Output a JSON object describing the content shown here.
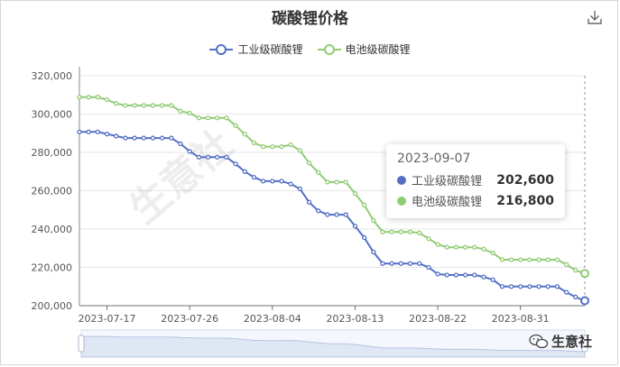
{
  "chart_data": {
    "type": "line",
    "title": "碳酸锂价格",
    "x": [
      "2023-07-14",
      "2023-07-15",
      "2023-07-16",
      "2023-07-17",
      "2023-07-18",
      "2023-07-19",
      "2023-07-20",
      "2023-07-21",
      "2023-07-22",
      "2023-07-23",
      "2023-07-24",
      "2023-07-25",
      "2023-07-26",
      "2023-07-27",
      "2023-07-28",
      "2023-07-29",
      "2023-07-30",
      "2023-07-31",
      "2023-08-01",
      "2023-08-02",
      "2023-08-03",
      "2023-08-04",
      "2023-08-05",
      "2023-08-06",
      "2023-08-07",
      "2023-08-08",
      "2023-08-09",
      "2023-08-10",
      "2023-08-11",
      "2023-08-12",
      "2023-08-13",
      "2023-08-14",
      "2023-08-15",
      "2023-08-16",
      "2023-08-17",
      "2023-08-18",
      "2023-08-19",
      "2023-08-20",
      "2023-08-21",
      "2023-08-22",
      "2023-08-23",
      "2023-08-24",
      "2023-08-25",
      "2023-08-26",
      "2023-08-27",
      "2023-08-28",
      "2023-08-29",
      "2023-08-30",
      "2023-08-31",
      "2023-09-01",
      "2023-09-02",
      "2023-09-03",
      "2023-09-04",
      "2023-09-05",
      "2023-09-06",
      "2023-09-07"
    ],
    "x_ticks": [
      "2023-07-17",
      "2023-07-26",
      "2023-08-04",
      "2023-08-13",
      "2023-08-22",
      "2023-08-31"
    ],
    "ylim": [
      200000,
      320000
    ],
    "y_ticks": [
      "200,000",
      "220,000",
      "240,000",
      "260,000",
      "280,000",
      "300,000",
      "320,000"
    ],
    "grid": true,
    "legend_position": "top-center",
    "series": [
      {
        "name": "工业级碳酸锂",
        "color": "#5470c6",
        "values": [
          290700,
          290700,
          290700,
          289600,
          288500,
          287500,
          287500,
          287500,
          287500,
          287500,
          287500,
          284500,
          280500,
          277500,
          277500,
          277500,
          277500,
          274000,
          270000,
          267000,
          265000,
          265000,
          265000,
          263500,
          261000,
          254000,
          249500,
          247500,
          247500,
          247500,
          241500,
          235500,
          228000,
          222000,
          222000,
          222000,
          222000,
          222000,
          220000,
          216500,
          216000,
          216000,
          216000,
          216000,
          215000,
          213500,
          210000,
          210000,
          210000,
          210000,
          210000,
          210000,
          210000,
          207000,
          204500,
          202600
        ]
      },
      {
        "name": "电池级碳酸锂",
        "color": "#91cc75",
        "values": [
          308800,
          308800,
          308800,
          307500,
          305500,
          304500,
          304500,
          304500,
          304500,
          304500,
          304500,
          301500,
          300500,
          298000,
          298000,
          298000,
          298000,
          294000,
          289500,
          285000,
          283000,
          283000,
          283000,
          284000,
          281000,
          274500,
          269500,
          264500,
          264500,
          264500,
          258500,
          252500,
          244500,
          238500,
          238500,
          238500,
          238500,
          238000,
          235000,
          232000,
          230500,
          230500,
          230500,
          230500,
          229500,
          227500,
          224000,
          224000,
          224000,
          224000,
          224000,
          224000,
          224000,
          221500,
          218500,
          216800
        ]
      }
    ]
  },
  "tooltip": {
    "date": "2023-09-07",
    "rows": [
      {
        "name": "工业级碳酸锂",
        "value": "202,600",
        "color": "#5470c6"
      },
      {
        "name": "电池级碳酸锂",
        "value": "216,800",
        "color": "#91cc75"
      }
    ]
  },
  "watermark": {
    "plot_text": "生意社",
    "brand_text": "生意社"
  },
  "icons": {
    "download": "download-icon",
    "brand": "wechat-icon"
  }
}
